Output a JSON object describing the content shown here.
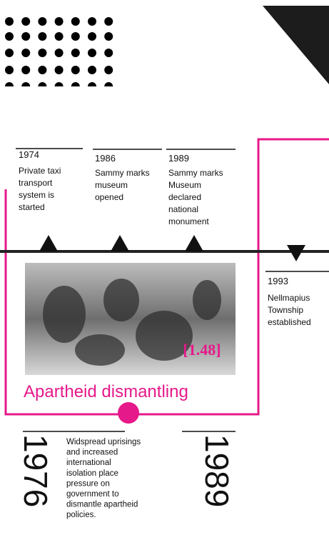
{
  "events": [
    {
      "year": "1974",
      "label": [
        "Private taxi",
        "transport",
        "system is",
        "started"
      ]
    },
    {
      "year": "1986",
      "label": [
        "Sammy marks",
        "museum",
        "opened"
      ]
    },
    {
      "year": "1989",
      "label": [
        "Sammy marks",
        "Museum",
        "declared",
        "national",
        "monument"
      ]
    },
    {
      "year": "1993",
      "label": [
        "Nellmapius",
        "Township",
        "established"
      ]
    }
  ],
  "photo": {
    "tag": "[1.48]"
  },
  "feature": {
    "title": "Apartheid dismantling",
    "start_year": "1976",
    "end_year": "1989",
    "description": [
      "Widspread uprisings",
      "and increased",
      "international",
      "isolation place",
      "pressure on",
      "government to",
      "dismantle apartheid",
      "policies."
    ]
  }
}
